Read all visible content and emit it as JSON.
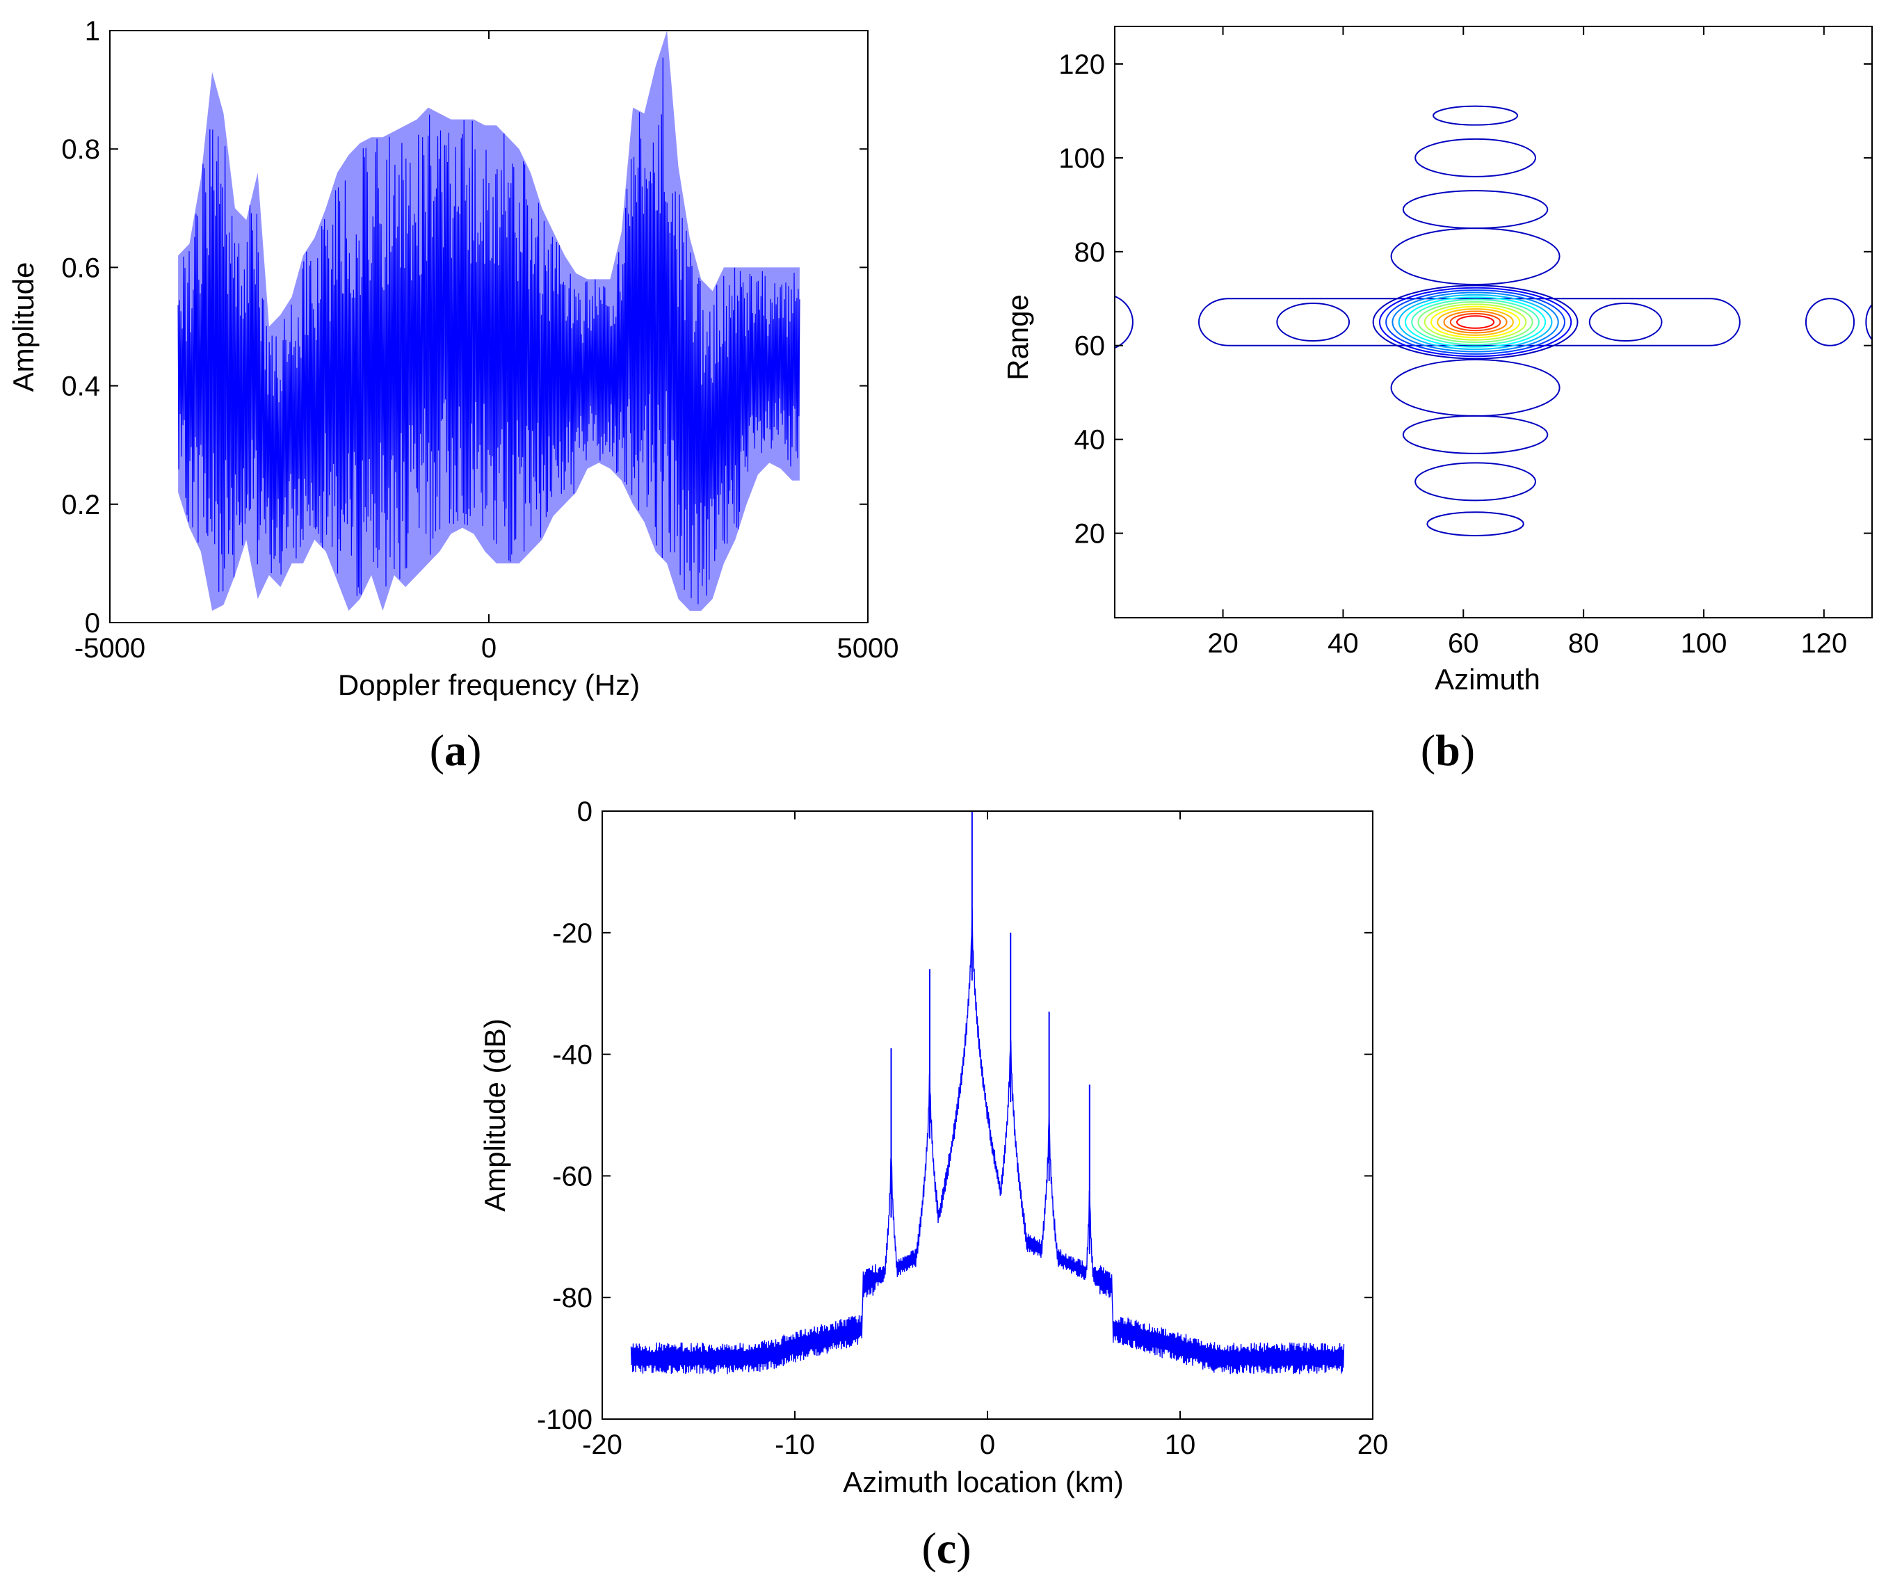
{
  "chart_data": [
    {
      "type": "line",
      "panel": "a",
      "caption_letter": "a",
      "title": "",
      "xlabel": "Doppler frequency (Hz)",
      "ylabel": "Amplitude",
      "xlim": [
        -5000,
        5000
      ],
      "ylim": [
        0,
        1
      ],
      "xticks": [
        -5000,
        0,
        5000
      ],
      "yticks": [
        0,
        0.2,
        0.4,
        0.6,
        0.8,
        1
      ],
      "xtick_labels": [
        "-5000",
        "0",
        "5000"
      ],
      "ytick_labels": [
        "0",
        "0.2",
        "0.4",
        "0.6",
        "0.8",
        "1"
      ],
      "series_color": "#0000ff",
      "envelope": {
        "x": [
          -4100,
          -3950,
          -3800,
          -3650,
          -3500,
          -3350,
          -3200,
          -3050,
          -2900,
          -2750,
          -2600,
          -2450,
          -2300,
          -2150,
          -2000,
          -1850,
          -1700,
          -1550,
          -1400,
          -1250,
          -1100,
          -950,
          -800,
          -650,
          -500,
          -350,
          -200,
          -50,
          100,
          250,
          400,
          550,
          700,
          850,
          1000,
          1150,
          1300,
          1450,
          1600,
          1750,
          1900,
          2050,
          2200,
          2350,
          2500,
          2650,
          2800,
          2950,
          3100,
          3250,
          3400,
          3550,
          3700,
          3850,
          4000,
          4100
        ],
        "upper": [
          0.62,
          0.64,
          0.75,
          0.93,
          0.86,
          0.7,
          0.68,
          0.76,
          0.5,
          0.52,
          0.55,
          0.62,
          0.65,
          0.7,
          0.76,
          0.79,
          0.81,
          0.82,
          0.82,
          0.83,
          0.84,
          0.85,
          0.87,
          0.86,
          0.85,
          0.85,
          0.85,
          0.84,
          0.84,
          0.82,
          0.8,
          0.76,
          0.7,
          0.66,
          0.62,
          0.59,
          0.58,
          0.58,
          0.58,
          0.66,
          0.87,
          0.86,
          0.94,
          1.0,
          0.77,
          0.65,
          0.58,
          0.56,
          0.6,
          0.6,
          0.6,
          0.6,
          0.6,
          0.6,
          0.6,
          0.6
        ],
        "lower": [
          0.22,
          0.16,
          0.12,
          0.02,
          0.03,
          0.08,
          0.14,
          0.04,
          0.08,
          0.06,
          0.1,
          0.1,
          0.14,
          0.12,
          0.07,
          0.02,
          0.04,
          0.08,
          0.02,
          0.08,
          0.06,
          0.08,
          0.1,
          0.12,
          0.15,
          0.16,
          0.15,
          0.12,
          0.1,
          0.1,
          0.1,
          0.12,
          0.14,
          0.18,
          0.2,
          0.22,
          0.26,
          0.27,
          0.26,
          0.24,
          0.2,
          0.17,
          0.12,
          0.1,
          0.04,
          0.02,
          0.02,
          0.04,
          0.1,
          0.14,
          0.2,
          0.25,
          0.27,
          0.26,
          0.24,
          0.24
        ]
      }
    },
    {
      "type": "contour",
      "panel": "b",
      "caption_letter": "b",
      "title": "",
      "xlabel": "Azimuth",
      "ylabel": "Range",
      "xlim": [
        2,
        128
      ],
      "ylim": [
        2,
        128
      ],
      "xticks": [
        20,
        40,
        60,
        80,
        100,
        120
      ],
      "yticks": [
        20,
        40,
        60,
        80,
        100,
        120
      ],
      "xtick_labels": [
        "20",
        "40",
        "60",
        "80",
        "100",
        "120"
      ],
      "ytick_labels": [
        "20",
        "40",
        "60",
        "80",
        "100",
        "120"
      ],
      "peak": {
        "azimuth": 62,
        "range": 65
      },
      "main_lobe_levels": 14,
      "range_sidelobes": [
        {
          "range": 109,
          "half_width": 7,
          "half_height": 2
        },
        {
          "range": 100,
          "half_width": 10,
          "half_height": 4
        },
        {
          "range": 89,
          "half_width": 12,
          "half_height": 4
        },
        {
          "range": 79,
          "half_width": 14,
          "half_height": 6
        },
        {
          "range": 51,
          "half_width": 14,
          "half_height": 6
        },
        {
          "range": 41,
          "half_width": 12,
          "half_height": 4
        },
        {
          "range": 31,
          "half_width": 10,
          "half_height": 4
        },
        {
          "range": 22,
          "half_width": 8,
          "half_height": 2.5
        }
      ],
      "azimuth_sidelobes": [
        {
          "azimuth": 35,
          "half_width": 6,
          "half_height": 4
        },
        {
          "azimuth": 87,
          "half_width": 6,
          "half_height": 4
        },
        {
          "azimuth": 121,
          "half_width": 4,
          "half_height": 5
        },
        {
          "azimuth": 0,
          "half_width": 5,
          "half_height": 6
        },
        {
          "azimuth": 130,
          "half_width": 3,
          "half_height": 5
        }
      ],
      "colors": [
        "#00007f",
        "#0000c0",
        "#0000ff",
        "#0040ff",
        "#0080ff",
        "#00c0ff",
        "#00ffff",
        "#40ffbf",
        "#80ff80",
        "#bfff40",
        "#ffff00",
        "#ffbf00",
        "#ff8000",
        "#ff4000",
        "#ff0000",
        "#bf0000"
      ]
    },
    {
      "type": "line",
      "panel": "c",
      "caption_letter": "c",
      "title": "",
      "xlabel": "Azimuth location (km)",
      "ylabel": "Amplitude (dB)",
      "xlim": [
        -20,
        20
      ],
      "ylim": [
        -100,
        0
      ],
      "xticks": [
        -20,
        -10,
        0,
        10,
        20
      ],
      "yticks": [
        -100,
        -80,
        -60,
        -40,
        -20,
        0
      ],
      "xtick_labels": [
        "-20",
        "-10",
        "0",
        "10",
        "20"
      ],
      "ytick_labels": [
        "-100",
        "-80",
        "-60",
        "-40",
        "-20",
        "0"
      ],
      "series_color": "#0000ff",
      "x_range": [
        -18.5,
        18.5
      ],
      "noise_floor": -90,
      "peaks": [
        {
          "x": -5.0,
          "value": -39
        },
        {
          "x": -3.0,
          "value": -26
        },
        {
          "x": -0.8,
          "value": 0
        },
        {
          "x": 1.2,
          "value": -20
        },
        {
          "x": 3.2,
          "value": -33
        },
        {
          "x": 5.3,
          "value": -45
        }
      ]
    }
  ]
}
